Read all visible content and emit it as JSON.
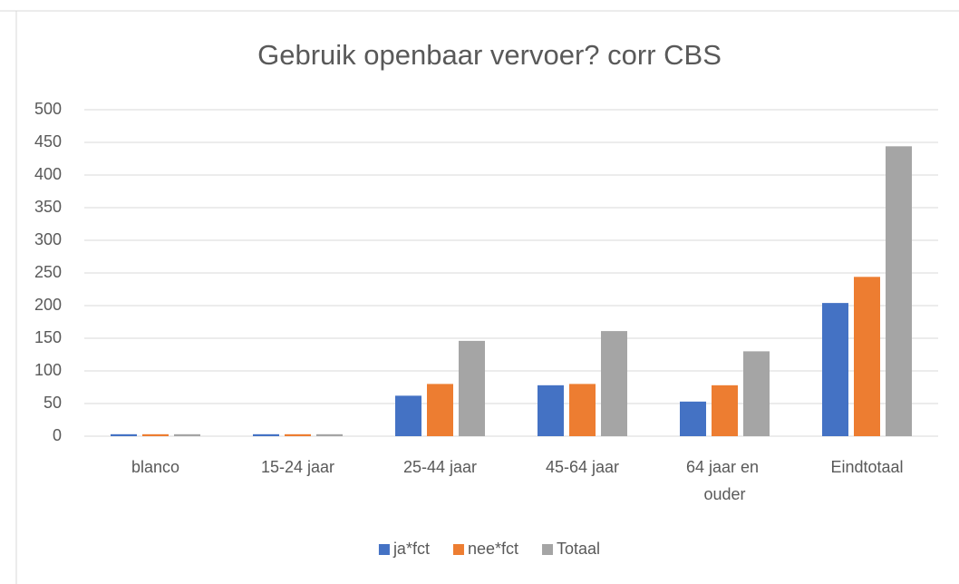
{
  "chart_data": {
    "type": "bar",
    "title": "Gebruik openbaar vervoer? corr CBS",
    "categories": [
      "blanco",
      "15-24 jaar",
      "25-44 jaar",
      "45-64 jaar",
      "64 jaar en ouder",
      "Eindtotaal"
    ],
    "series": [
      {
        "name": "ja*fct",
        "color": "#4472c4",
        "values": [
          3,
          3,
          62,
          78,
          53,
          204
        ]
      },
      {
        "name": "nee*fct",
        "color": "#ed7d31",
        "values": [
          3,
          3,
          80,
          80,
          78,
          244
        ]
      },
      {
        "name": "Totaal",
        "color": "#a5a5a5",
        "values": [
          3,
          3,
          146,
          161,
          130,
          444
        ]
      }
    ],
    "ylim": [
      0,
      500
    ],
    "yticks": [
      0,
      50,
      100,
      150,
      200,
      250,
      300,
      350,
      400,
      450,
      500
    ],
    "grid": true,
    "legend": "bottom"
  }
}
